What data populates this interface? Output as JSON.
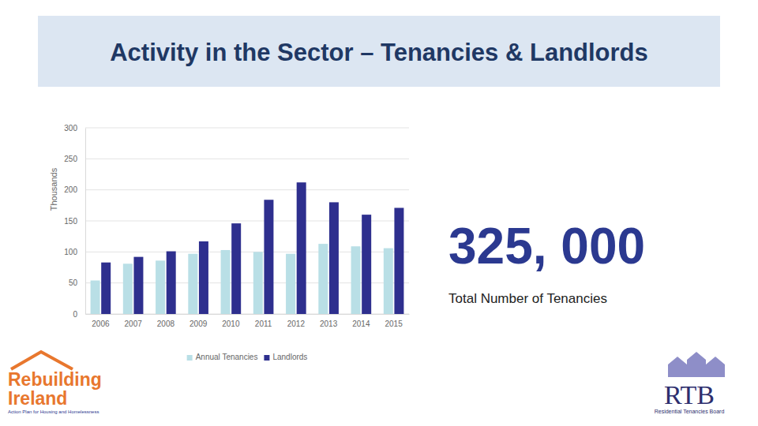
{
  "chart_data": {
    "type": "bar",
    "y_label": "Thousands",
    "categories": [
      "2006",
      "2007",
      "2008",
      "2009",
      "2010",
      "2011",
      "2012",
      "2013",
      "2014",
      "2015"
    ],
    "series": [
      {
        "name": "Annual Tenancies",
        "color": "#b9dfe6",
        "values": [
          54,
          81,
          86,
          97,
          103,
          100,
          97,
          113,
          109,
          106
        ]
      },
      {
        "name": "Landlords",
        "color": "#2e2f8e",
        "values": [
          83,
          92,
          101,
          117,
          146,
          184,
          212,
          180,
          160,
          171
        ]
      }
    ],
    "ylim": [
      0,
      300
    ],
    "yticks": [
      0,
      50,
      100,
      150,
      200,
      250,
      300
    ],
    "grid": true,
    "legend": "bottom"
  },
  "slide": {
    "title": "Activity in the Sector – Tenancies & Landlords",
    "stat": {
      "value": 325000,
      "label": "325, 000"
    },
    "stat_caption": "Total Number of Tenancies",
    "logo_left": [
      "Rebuilding",
      "Ireland",
      "Action Plan for Housing and Homelessness"
    ],
    "logo_right": [
      "RTB",
      "Residential Tenancies Board"
    ]
  }
}
